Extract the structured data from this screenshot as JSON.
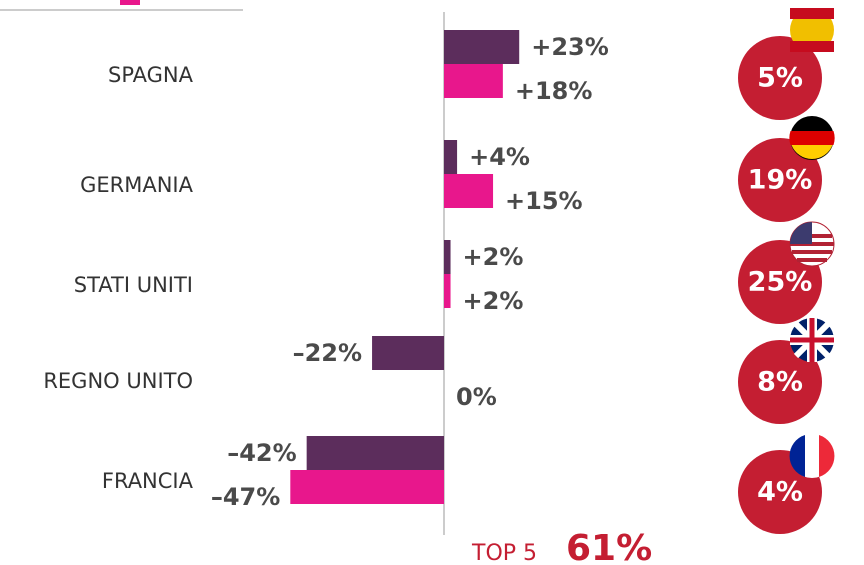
{
  "chart_data": {
    "type": "bar",
    "orientation": "horizontal",
    "categories": [
      "SPAGNA",
      "GERMANIA",
      "STATI UNITI",
      "REGNO UNITO",
      "FRANCIA"
    ],
    "series": [
      {
        "color": "#5c2d5c",
        "values": [
          23,
          4,
          2,
          -22,
          -42
        ],
        "value_labels": [
          "+23%",
          "+4%",
          "+2%",
          "–22%",
          "–42%"
        ]
      },
      {
        "color": "#e8178c",
        "values": [
          18,
          15,
          2,
          0,
          -47
        ],
        "value_labels": [
          "+18%",
          "+15%",
          "+2%",
          "0%",
          "–47%"
        ]
      }
    ],
    "shares": {
      "color": "#c41e32",
      "values": [
        5,
        19,
        25,
        8,
        4
      ],
      "value_labels": [
        "5%",
        "19%",
        "25%",
        "8%",
        "4%"
      ]
    },
    "total": {
      "label": "TOP 5",
      "value": 61,
      "value_label": "61%"
    }
  }
}
